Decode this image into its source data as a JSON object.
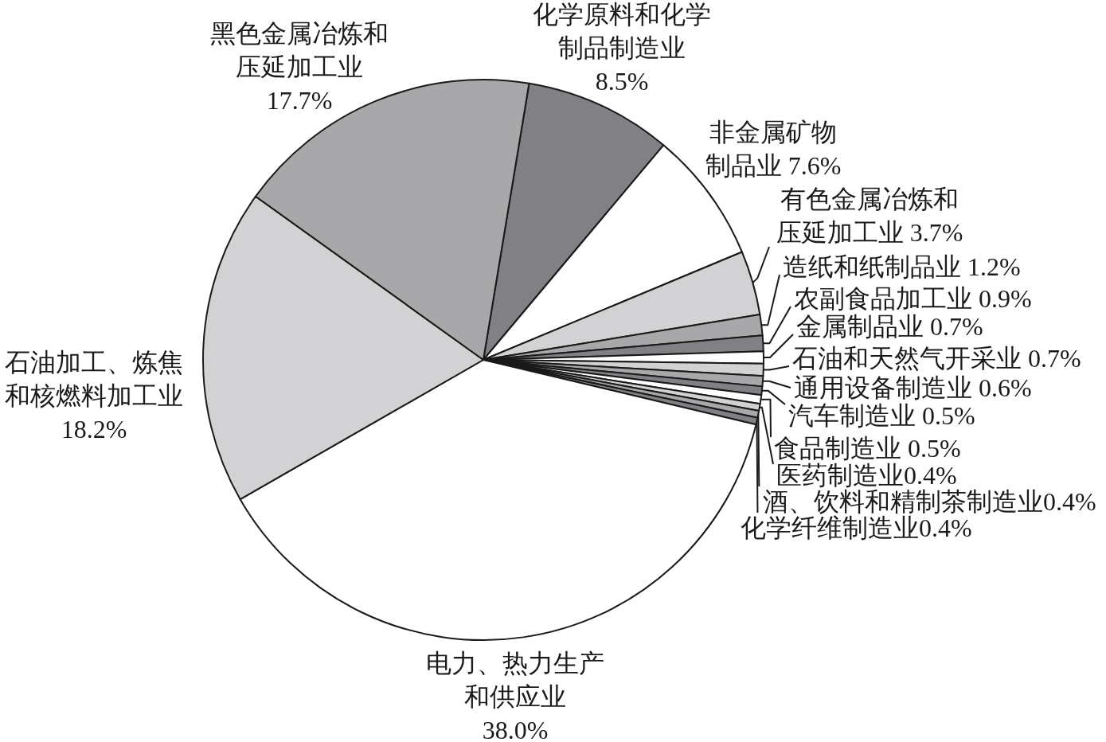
{
  "chart_data": {
    "type": "pie",
    "categories": [
      "化学原料和化学制品制造业",
      "非金属矿物制品业",
      "有色金属冶炼和压延加工业",
      "造纸和纸制品业",
      "农副食品加工业",
      "金属制品业",
      "石油和天然气开采业",
      "通用设备制造业",
      "汽车制造业",
      "食品制造业",
      "医药制造业",
      "酒、饮料和精制茶制造业",
      "化学纤维制造业",
      "电力、热力生产和供应业",
      "石油加工、炼焦和核燃料加工业",
      "黑色金属冶炼和压延加工业"
    ],
    "values": [
      8.5,
      7.6,
      3.7,
      1.2,
      0.9,
      0.7,
      0.7,
      0.6,
      0.5,
      0.5,
      0.4,
      0.4,
      0.4,
      38.0,
      18.2,
      17.7
    ],
    "value_labels": [
      "8.5%",
      "7.6%",
      "3.7%",
      "1.2%",
      "0.9%",
      "0.7%",
      "0.7%",
      "0.6%",
      "0.5%",
      "0.5%",
      "0.4%",
      "0.4%",
      "0.4%",
      "38.0%",
      "18.2%",
      "17.7%"
    ],
    "colors": [
      "#818185",
      "#ffffff",
      "#d2d2d4",
      "#a8a8ab",
      "#818185",
      "#ffffff",
      "#d2d2d4",
      "#a8a8ab",
      "#818185",
      "#ffffff",
      "#d2d2d4",
      "#a8a8ab",
      "#818185",
      "#ffffff",
      "#d2d2d4",
      "#a8a8ab"
    ]
  }
}
